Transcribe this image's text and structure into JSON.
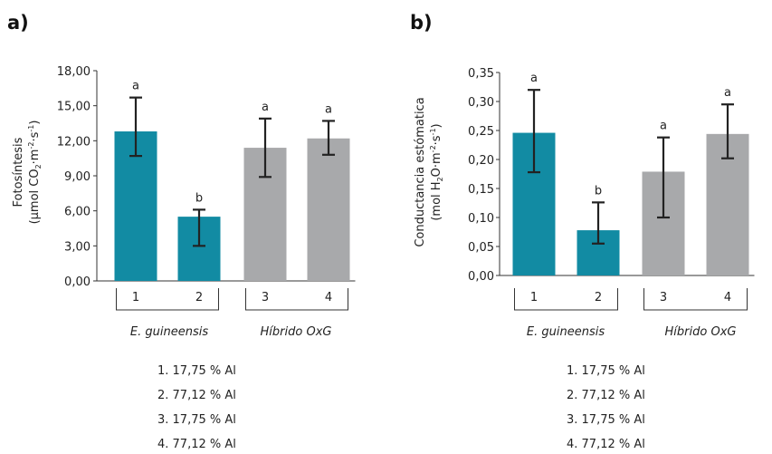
{
  "colors": {
    "teal": "#128ba3",
    "gray": "#a8a9ab",
    "error": "#222222",
    "axis": "#333333"
  },
  "chart_data": [
    {
      "type": "bar",
      "panel_label": "a)",
      "ylabel": {
        "line1": "Fotosíntesis",
        "line2_pre": "(μmol CO",
        "line2_sub": "2",
        "line2_mid": "·m",
        "line2_sup1": "-2",
        "line2_mid2": "·s",
        "line2_sup2": "-1",
        "line2_post": ")"
      },
      "ylim": [
        0,
        18
      ],
      "yticks": [
        "0,00",
        "3,00",
        "6,00",
        "9,00",
        "12,00",
        "15,00",
        "18,00"
      ],
      "categories": [
        "1",
        "2",
        "3",
        "4"
      ],
      "values": [
        12.8,
        5.5,
        11.4,
        12.2
      ],
      "error_low": [
        10.7,
        3.0,
        8.9,
        10.8
      ],
      "error_high": [
        15.7,
        6.1,
        13.9,
        13.7
      ],
      "significance": [
        "a",
        "b",
        "a",
        "a"
      ],
      "bar_colors": [
        "teal",
        "teal",
        "gray",
        "gray"
      ],
      "groups": [
        "E. guineensis",
        "Híbrido OxG"
      ]
    },
    {
      "type": "bar",
      "panel_label": "b)",
      "ylabel": {
        "line1": "Conductancia estómatica",
        "line2_pre": "(mol H",
        "line2_sub": "2",
        "line2_mid": "O·m",
        "line2_sup1": "-2",
        "line2_mid2": "·s",
        "line2_sup2": "-1",
        "line2_post": ")"
      },
      "ylim": [
        0,
        0.35
      ],
      "yticks": [
        "0,00",
        "0,05",
        "0,10",
        "0,15",
        "0,20",
        "0,25",
        "0,30",
        "0,35"
      ],
      "categories": [
        "1",
        "2",
        "3",
        "4"
      ],
      "values": [
        0.246,
        0.078,
        0.179,
        0.244
      ],
      "error_low": [
        0.178,
        0.055,
        0.1,
        0.202
      ],
      "error_high": [
        0.32,
        0.126,
        0.238,
        0.295
      ],
      "significance": [
        "a",
        "b",
        "a",
        "a"
      ],
      "bar_colors": [
        "teal",
        "teal",
        "gray",
        "gray"
      ],
      "groups": [
        "E. guineensis",
        "Híbrido OxG"
      ]
    }
  ],
  "legend": [
    "1.  17,75 % Al",
    "2.  77,12 % Al",
    "3.  17,75 % Al",
    "4.  77,12 % Al"
  ]
}
